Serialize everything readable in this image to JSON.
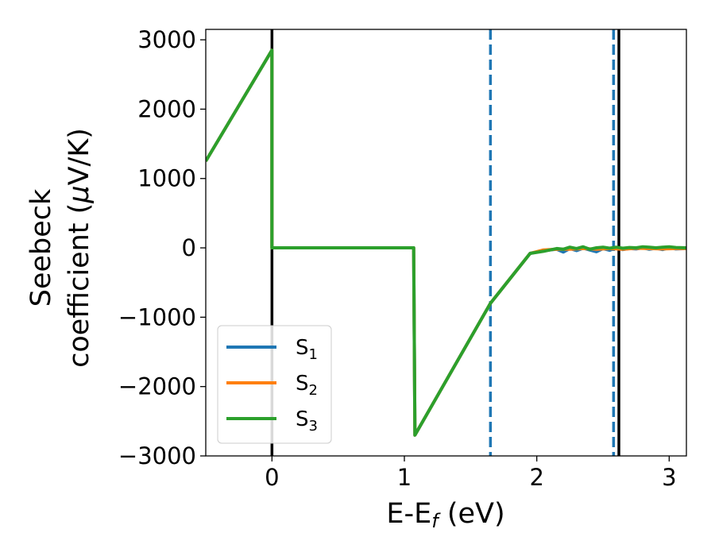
{
  "chart_data": {
    "type": "line",
    "title": "",
    "xlabel": "E-E",
    "xlabel_sub": "f",
    "xlabel_unit": " (eV)",
    "ylabel_line1": "Seebeck",
    "ylabel_line2": "coefficient  (",
    "ylabel_mu": "μ",
    "ylabel_unit": "V/K)",
    "xlim": [
      -0.5,
      3.13
    ],
    "ylim": [
      -3000,
      3150
    ],
    "x_ticks": [
      0,
      1,
      2,
      3
    ],
    "x_tick_labels": [
      "0",
      "1",
      "2",
      "3"
    ],
    "y_ticks": [
      3000,
      2000,
      1000,
      0,
      -1000,
      -2000,
      -3000
    ],
    "y_tick_labels": [
      "3000",
      "2000",
      "1000",
      "0",
      "−1000",
      "−2000",
      "−3000"
    ],
    "grid": false,
    "legend_position": "lower-left",
    "series": [
      {
        "name": "S",
        "sub": "1",
        "color": "#1f77b4",
        "x": [
          -0.5,
          0.0,
          0.0,
          1.07,
          1.08,
          1.65,
          1.95,
          2.05,
          2.15,
          2.2,
          2.25,
          2.3,
          2.35,
          2.4,
          2.45,
          2.5,
          2.55,
          2.6,
          2.65,
          2.7,
          2.75,
          2.8,
          2.85,
          2.9,
          2.95,
          3.0,
          3.05,
          3.13
        ],
        "y": [
          1250,
          2850,
          0,
          0,
          -2700,
          -800,
          -80,
          -40,
          -20,
          -60,
          -10,
          -40,
          -5,
          -30,
          -55,
          -10,
          -35,
          5,
          -25,
          -10,
          -15,
          0,
          -20,
          -5,
          -25,
          0,
          -15,
          -10
        ]
      },
      {
        "name": "S",
        "sub": "2",
        "color": "#ff7f0e",
        "x": [
          -0.5,
          0.0,
          0.0,
          1.07,
          1.08,
          1.65,
          1.95,
          2.05,
          2.15,
          2.25,
          2.35,
          2.45,
          2.55,
          2.65,
          2.75,
          2.85,
          2.95,
          3.05,
          3.13
        ],
        "y": [
          1250,
          2850,
          0,
          0,
          -2700,
          -800,
          -80,
          -30,
          -20,
          -20,
          -10,
          -20,
          -10,
          -20,
          -5,
          -10,
          -15,
          -10,
          -10
        ]
      },
      {
        "name": "S",
        "sub": "3",
        "color": "#2ca02c",
        "x": [
          -0.5,
          0.0,
          0.0,
          1.07,
          1.08,
          1.65,
          1.95,
          2.05,
          2.15,
          2.2,
          2.25,
          2.3,
          2.35,
          2.4,
          2.45,
          2.5,
          2.55,
          2.6,
          2.65,
          2.7,
          2.75,
          2.8,
          2.85,
          2.9,
          2.95,
          3.0,
          3.05,
          3.13
        ],
        "y": [
          1250,
          2850,
          0,
          0,
          -2700,
          -800,
          -80,
          -50,
          -10,
          -20,
          10,
          -10,
          15,
          -20,
          0,
          10,
          -5,
          10,
          -5,
          5,
          0,
          15,
          10,
          0,
          10,
          15,
          5,
          0
        ]
      }
    ],
    "vlines": [
      {
        "x": 0.0,
        "color": "#000000",
        "style": "solid"
      },
      {
        "x": 2.62,
        "color": "#000000",
        "style": "solid"
      },
      {
        "x": 1.65,
        "color": "#1f77b4",
        "style": "dashed"
      },
      {
        "x": 2.58,
        "color": "#1f77b4",
        "style": "dashed"
      }
    ]
  }
}
